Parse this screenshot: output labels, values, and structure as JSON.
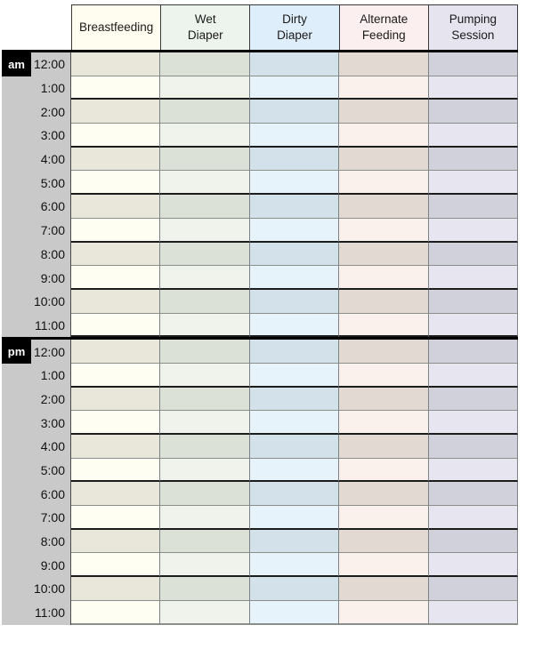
{
  "table": {
    "columns": [
      {
        "id": "breastfeeding",
        "label": "Breastfeeding",
        "header_bg": "#fffdf0",
        "row_light": "#fffef2",
        "row_dark": "#e8e7da"
      },
      {
        "id": "wet-diaper",
        "label": "Wet\nDiaper",
        "header_bg": "#edf4ee",
        "row_light": "#eff3ec",
        "row_dark": "#dce1d8"
      },
      {
        "id": "dirty-diaper",
        "label": "Dirty\nDiaper",
        "header_bg": "#deeefa",
        "row_light": "#e7f3fb",
        "row_dark": "#d3e1ea"
      },
      {
        "id": "alternate-feeding",
        "label": "Alternate\nFeeding",
        "header_bg": "#fceff0",
        "row_light": "#faf0ec",
        "row_dark": "#e2d9d2"
      },
      {
        "id": "pumping-session",
        "label": "Pumping\nSession",
        "header_bg": "#e5e4ef",
        "row_light": "#e6e5f0",
        "row_dark": "#d1d1dc"
      }
    ],
    "hours": [
      "12:00",
      "1:00",
      "2:00",
      "3:00",
      "4:00",
      "5:00",
      "6:00",
      "7:00",
      "8:00",
      "9:00",
      "10:00",
      "11:00"
    ],
    "sections": [
      {
        "id": "am",
        "badge": "am"
      },
      {
        "id": "pm",
        "badge": "pm"
      }
    ]
  },
  "colors": {
    "time_column_bg": "#c9c9c9",
    "badge_bg": "#000000",
    "badge_text": "#ffffff",
    "separator": "#000000",
    "row_line_gray": "#8a8f8a",
    "row_line_black": "#1c1c1c",
    "column_line": "#7d8287",
    "header_border": "#3a3a3a"
  }
}
